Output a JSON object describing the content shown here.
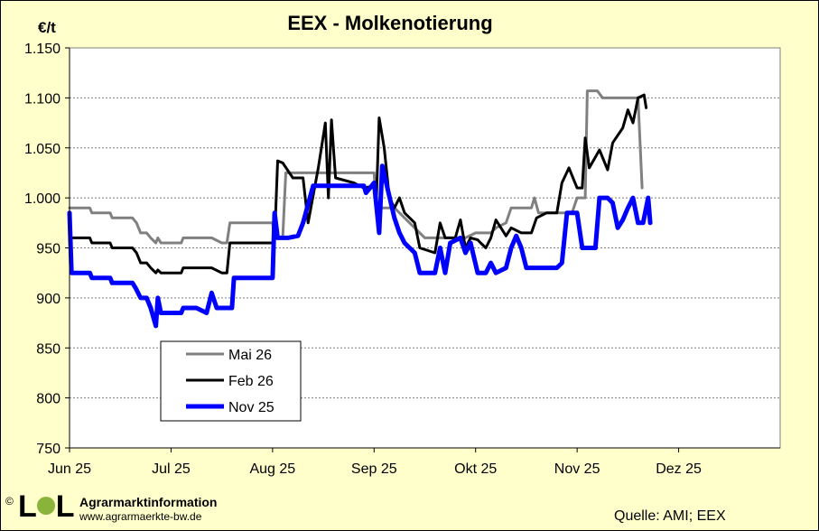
{
  "chart_data": {
    "type": "line",
    "title": "EEX - Molkenotierung",
    "ylabel": "€/t",
    "ylim": [
      750,
      1150
    ],
    "yticks": [
      "750",
      "800",
      "850",
      "900",
      "950",
      "1.000",
      "1.050",
      "1.100",
      "1.150"
    ],
    "ytick_values": [
      750,
      800,
      850,
      900,
      950,
      1000,
      1050,
      1100,
      1150
    ],
    "xlim": [
      0,
      7
    ],
    "xticks": [
      "Jun 25",
      "Jul 25",
      "Aug 25",
      "Sep 25",
      "Okt 25",
      "Nov 25",
      "Dez 25"
    ],
    "grid": "horizontal dashed",
    "legend_position": "lower-left",
    "series": [
      {
        "name": "Mai 26",
        "color": "#808080",
        "width": 3,
        "points": [
          [
            0.0,
            990
          ],
          [
            0.2,
            990
          ],
          [
            0.22,
            985
          ],
          [
            0.4,
            985
          ],
          [
            0.42,
            980
          ],
          [
            0.62,
            980
          ],
          [
            0.66,
            975
          ],
          [
            0.7,
            965
          ],
          [
            0.76,
            965
          ],
          [
            0.8,
            960
          ],
          [
            0.85,
            955
          ],
          [
            0.87,
            960
          ],
          [
            0.9,
            955
          ],
          [
            1.1,
            955
          ],
          [
            1.12,
            960
          ],
          [
            1.4,
            960
          ],
          [
            1.5,
            955
          ],
          [
            1.55,
            955
          ],
          [
            1.58,
            975
          ],
          [
            2.0,
            975
          ],
          [
            2.02,
            960
          ],
          [
            2.1,
            960
          ],
          [
            2.13,
            1025
          ],
          [
            3.0,
            1025
          ],
          [
            3.02,
            990
          ],
          [
            3.2,
            990
          ],
          [
            3.25,
            985
          ],
          [
            3.35,
            975
          ],
          [
            3.5,
            960
          ],
          [
            3.9,
            960
          ],
          [
            4.0,
            965
          ],
          [
            4.15,
            965
          ],
          [
            4.2,
            970
          ],
          [
            4.3,
            975
          ],
          [
            4.35,
            990
          ],
          [
            4.55,
            990
          ],
          [
            4.58,
            1000
          ],
          [
            4.62,
            985
          ],
          [
            4.95,
            985
          ],
          [
            5.0,
            1000
          ],
          [
            5.08,
            1000
          ],
          [
            5.1,
            1107
          ],
          [
            5.2,
            1107
          ],
          [
            5.25,
            1100
          ],
          [
            5.6,
            1100
          ],
          [
            5.64,
            1010
          ]
        ]
      },
      {
        "name": "Feb 26",
        "color": "#000000",
        "width": 3,
        "points": [
          [
            0.0,
            960
          ],
          [
            0.2,
            960
          ],
          [
            0.22,
            955
          ],
          [
            0.4,
            955
          ],
          [
            0.42,
            950
          ],
          [
            0.62,
            950
          ],
          [
            0.66,
            945
          ],
          [
            0.7,
            935
          ],
          [
            0.76,
            935
          ],
          [
            0.8,
            930
          ],
          [
            0.85,
            925
          ],
          [
            0.87,
            928
          ],
          [
            0.9,
            925
          ],
          [
            1.1,
            925
          ],
          [
            1.12,
            930
          ],
          [
            1.4,
            930
          ],
          [
            1.5,
            925
          ],
          [
            1.55,
            925
          ],
          [
            1.58,
            955
          ],
          [
            2.0,
            955
          ],
          [
            2.02,
            958
          ],
          [
            2.05,
            1037
          ],
          [
            2.1,
            1035
          ],
          [
            2.2,
            1020
          ],
          [
            2.3,
            1020
          ],
          [
            2.35,
            975
          ],
          [
            2.45,
            1030
          ],
          [
            2.52,
            1075
          ],
          [
            2.55,
            1000
          ],
          [
            2.58,
            1078
          ],
          [
            2.62,
            1020
          ],
          [
            2.8,
            1015
          ],
          [
            2.9,
            1010
          ],
          [
            3.0,
            1012
          ],
          [
            3.02,
            990
          ],
          [
            3.05,
            1080
          ],
          [
            3.1,
            1050
          ],
          [
            3.15,
            1000
          ],
          [
            3.2,
            990
          ],
          [
            3.25,
            1000
          ],
          [
            3.3,
            985
          ],
          [
            3.4,
            975
          ],
          [
            3.45,
            950
          ],
          [
            3.6,
            945
          ],
          [
            3.65,
            975
          ],
          [
            3.7,
            960
          ],
          [
            3.8,
            960
          ],
          [
            3.85,
            978
          ],
          [
            3.9,
            950
          ],
          [
            3.95,
            960
          ],
          [
            4.02,
            958
          ],
          [
            4.05,
            955
          ],
          [
            4.1,
            950
          ],
          [
            4.15,
            960
          ],
          [
            4.2,
            978
          ],
          [
            4.3,
            962
          ],
          [
            4.35,
            970
          ],
          [
            4.45,
            965
          ],
          [
            4.55,
            965
          ],
          [
            4.6,
            980
          ],
          [
            4.7,
            985
          ],
          [
            4.8,
            985
          ],
          [
            4.85,
            1015
          ],
          [
            4.92,
            1030
          ],
          [
            5.0,
            1010
          ],
          [
            5.05,
            1010
          ],
          [
            5.08,
            1060
          ],
          [
            5.12,
            1030
          ],
          [
            5.22,
            1048
          ],
          [
            5.3,
            1028
          ],
          [
            5.35,
            1055
          ],
          [
            5.45,
            1070
          ],
          [
            5.5,
            1088
          ],
          [
            5.55,
            1075
          ],
          [
            5.6,
            1100
          ],
          [
            5.66,
            1103
          ],
          [
            5.68,
            1090
          ]
        ]
      },
      {
        "name": "Nov 25",
        "color": "#0000ff",
        "width": 5,
        "points": [
          [
            0.0,
            985
          ],
          [
            0.02,
            925
          ],
          [
            0.2,
            925
          ],
          [
            0.22,
            920
          ],
          [
            0.4,
            920
          ],
          [
            0.42,
            915
          ],
          [
            0.62,
            915
          ],
          [
            0.65,
            910
          ],
          [
            0.7,
            900
          ],
          [
            0.76,
            900
          ],
          [
            0.8,
            890
          ],
          [
            0.85,
            872
          ],
          [
            0.87,
            900
          ],
          [
            0.9,
            885
          ],
          [
            1.1,
            885
          ],
          [
            1.12,
            890
          ],
          [
            1.25,
            890
          ],
          [
            1.35,
            885
          ],
          [
            1.4,
            905
          ],
          [
            1.45,
            890
          ],
          [
            1.6,
            890
          ],
          [
            1.62,
            920
          ],
          [
            2.0,
            920
          ],
          [
            2.02,
            985
          ],
          [
            2.05,
            960
          ],
          [
            2.15,
            960
          ],
          [
            2.25,
            962
          ],
          [
            2.3,
            975
          ],
          [
            2.4,
            1012
          ],
          [
            2.9,
            1012
          ],
          [
            2.92,
            1005
          ],
          [
            3.0,
            1015
          ],
          [
            3.05,
            965
          ],
          [
            3.08,
            1032
          ],
          [
            3.2,
            980
          ],
          [
            3.25,
            965
          ],
          [
            3.3,
            955
          ],
          [
            3.4,
            945
          ],
          [
            3.45,
            925
          ],
          [
            3.6,
            925
          ],
          [
            3.65,
            950
          ],
          [
            3.7,
            925
          ],
          [
            3.75,
            955
          ],
          [
            3.85,
            960
          ],
          [
            3.9,
            945
          ],
          [
            3.95,
            955
          ],
          [
            4.02,
            925
          ],
          [
            4.1,
            925
          ],
          [
            4.15,
            935
          ],
          [
            4.2,
            925
          ],
          [
            4.3,
            930
          ],
          [
            4.35,
            950
          ],
          [
            4.4,
            962
          ],
          [
            4.45,
            950
          ],
          [
            4.5,
            930
          ],
          [
            4.8,
            930
          ],
          [
            4.85,
            935
          ],
          [
            4.9,
            985
          ],
          [
            5.0,
            985
          ],
          [
            5.05,
            950
          ],
          [
            5.18,
            950
          ],
          [
            5.22,
            1000
          ],
          [
            5.3,
            1000
          ],
          [
            5.35,
            995
          ],
          [
            5.4,
            970
          ],
          [
            5.45,
            978
          ],
          [
            5.5,
            990
          ],
          [
            5.55,
            1000
          ],
          [
            5.6,
            975
          ],
          [
            5.65,
            975
          ],
          [
            5.7,
            1000
          ],
          [
            5.72,
            975
          ]
        ]
      }
    ]
  },
  "footer": {
    "logo_copyright": "©",
    "logo_text_left": "L",
    "logo_text_right": "L",
    "org_name": "Agrarmarktinformation",
    "org_url": "www.agrarmaerkte-bw.de",
    "source": "Quelle:  AMI; EEX"
  },
  "colors": {
    "background": "#ffffcc",
    "plot_background": "#ffffff",
    "logo_accent": "#8ab33a"
  }
}
